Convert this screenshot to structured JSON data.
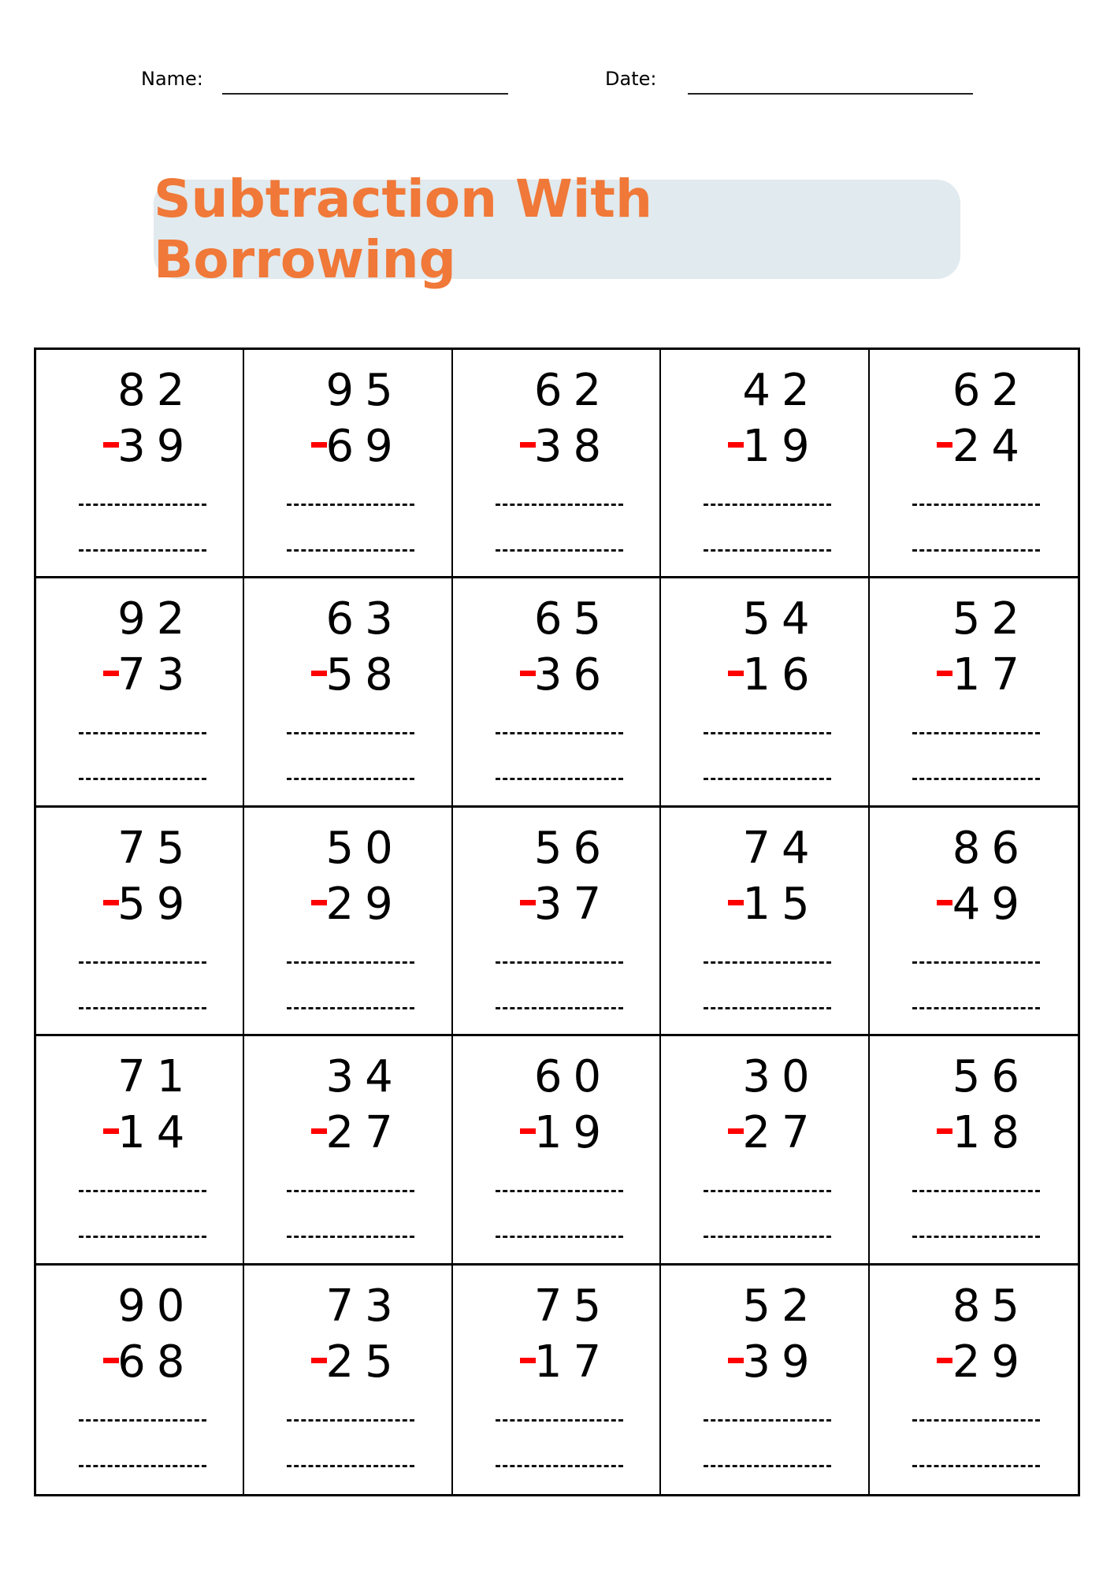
{
  "header": {
    "name_label": "Name:",
    "date_label": "Date:"
  },
  "title": "Subtraction With Borrowing",
  "colors": {
    "title": "#f07838",
    "title_bg": "#e1eaee",
    "minus": "#ff0000"
  },
  "problems": [
    {
      "top": "82",
      "bottom": "39"
    },
    {
      "top": "95",
      "bottom": "69"
    },
    {
      "top": "62",
      "bottom": "38"
    },
    {
      "top": "42",
      "bottom": "19"
    },
    {
      "top": "62",
      "bottom": "24"
    },
    {
      "top": "92",
      "bottom": "73"
    },
    {
      "top": "63",
      "bottom": "58"
    },
    {
      "top": "65",
      "bottom": "36"
    },
    {
      "top": "54",
      "bottom": "16"
    },
    {
      "top": "52",
      "bottom": "17"
    },
    {
      "top": "75",
      "bottom": "59"
    },
    {
      "top": "50",
      "bottom": "29"
    },
    {
      "top": "56",
      "bottom": "37"
    },
    {
      "top": "74",
      "bottom": "15"
    },
    {
      "top": "86",
      "bottom": "49"
    },
    {
      "top": "71",
      "bottom": "14"
    },
    {
      "top": "34",
      "bottom": "27"
    },
    {
      "top": "60",
      "bottom": "19"
    },
    {
      "top": "30",
      "bottom": "27"
    },
    {
      "top": "56",
      "bottom": "18"
    },
    {
      "top": "90",
      "bottom": "68"
    },
    {
      "top": "73",
      "bottom": "25"
    },
    {
      "top": "75",
      "bottom": "17"
    },
    {
      "top": "52",
      "bottom": "39"
    },
    {
      "top": "85",
      "bottom": "29"
    }
  ]
}
